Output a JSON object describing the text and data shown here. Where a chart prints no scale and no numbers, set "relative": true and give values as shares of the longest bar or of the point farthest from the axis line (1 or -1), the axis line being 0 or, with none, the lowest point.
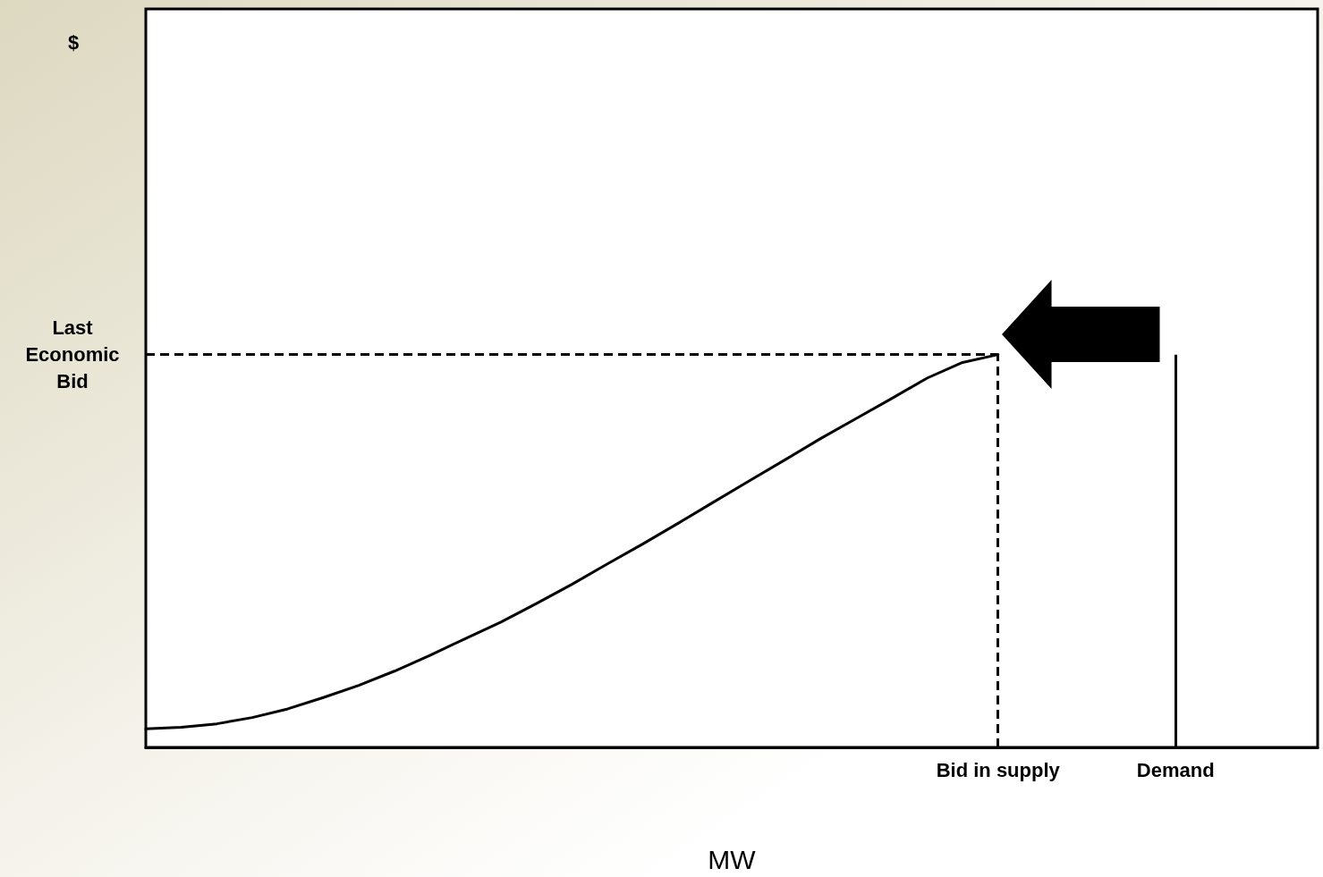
{
  "chart_data": {
    "type": "line",
    "relative": true,
    "xlabel": "MW",
    "annotations": [
      "$"
    ],
    "categories": [
      null,
      null,
      null,
      null,
      null,
      null,
      null,
      null,
      null,
      null,
      null,
      null,
      null,
      null,
      null,
      null,
      null,
      null,
      null,
      null,
      null,
      null,
      null,
      null,
      "Bid in supply",
      null,
      null,
      null,
      null,
      "Demand",
      null,
      null,
      null,
      null
    ],
    "series": [
      {
        "color": "#000000",
        "values": [
          0.047,
          0.051,
          0.06,
          0.076,
          0.098,
          0.127,
          0.158,
          0.194,
          0.234,
          0.277,
          0.319,
          0.366,
          0.415,
          0.467,
          0.518,
          0.571,
          0.625,
          0.679,
          0.732,
          0.786,
          0.837,
          0.888,
          0.94,
          0.98,
          1.0,
          null,
          null,
          null,
          null,
          null,
          null,
          null,
          null,
          null
        ]
      }
    ],
    "ref_lines": [
      {
        "axis": "y",
        "value": 1,
        "label": "Last\nEconomic\nBid",
        "line_style": "dashed",
        "color": "#000000"
      },
      {
        "axis": "x",
        "value": "Bid in supply",
        "line_style": "dashed",
        "color": "#000000"
      },
      {
        "axis": "x",
        "value": "Demand",
        "line_style": "solid",
        "color": "#000000"
      }
    ],
    "grid": false,
    "marker": "none",
    "line_style": "solid",
    "tick_labels": "x"
  }
}
